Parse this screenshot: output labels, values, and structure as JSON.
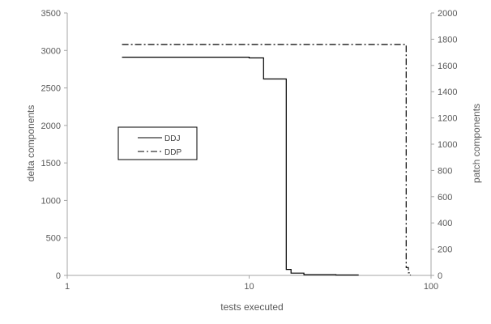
{
  "chart_data": {
    "type": "line",
    "title": "",
    "xlabel": "tests executed",
    "ylabel": "delta components",
    "y2label": "patch components",
    "x_scale": "log",
    "xlim": [
      1,
      100
    ],
    "ylim": [
      0,
      3500
    ],
    "y2lim": [
      0,
      2000
    ],
    "x_ticks": [
      1,
      10,
      100
    ],
    "x_tick_labels": [
      "1",
      "10",
      "100"
    ],
    "y_ticks": [
      0,
      500,
      1000,
      1500,
      2000,
      2500,
      3000,
      3500
    ],
    "y_tick_labels": [
      "0",
      "500",
      "1000",
      "1500",
      "2000",
      "2500",
      "3000",
      "3500"
    ],
    "y2_ticks": [
      0,
      200,
      400,
      600,
      800,
      1000,
      1200,
      1400,
      1600,
      1800,
      2000
    ],
    "y2_tick_labels": [
      "0",
      "200",
      "400",
      "600",
      "800",
      "1000",
      "1200",
      "1400",
      "1600",
      "1800",
      "2000"
    ],
    "grid": false,
    "legend_position": "left-middle",
    "series": [
      {
        "name": "DDJ",
        "axis": "left",
        "style": "solid",
        "color": "#000000",
        "x": [
          2,
          10,
          10,
          12,
          12,
          16,
          16,
          17,
          17,
          20,
          20,
          30,
          30,
          40
        ],
        "y": [
          2910,
          2910,
          2900,
          2900,
          2620,
          2620,
          80,
          80,
          30,
          30,
          10,
          10,
          5,
          5
        ]
      },
      {
        "name": "DDP",
        "axis": "right",
        "style": "dash-dot",
        "color": "#000000",
        "x": [
          2,
          73,
          73,
          75,
          75,
          77,
          77
        ],
        "y": [
          1760,
          1760,
          60,
          60,
          20,
          20,
          2
        ]
      }
    ]
  }
}
